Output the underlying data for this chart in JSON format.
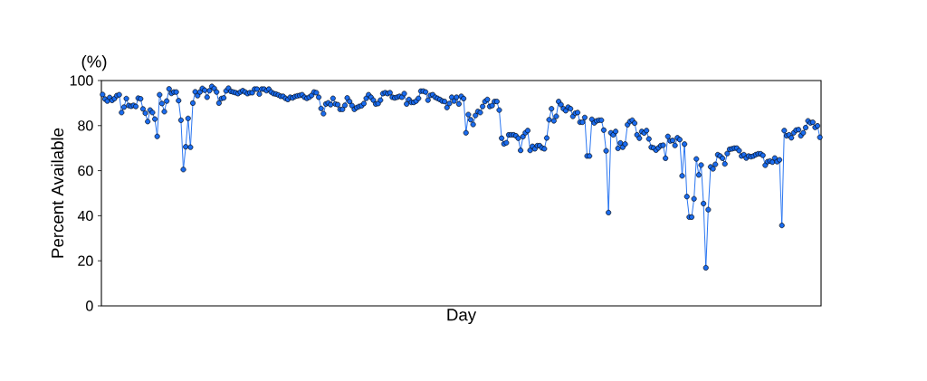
{
  "chart_data": {
    "type": "line",
    "xlabel": "Day",
    "ylabel": "Percent Available",
    "annotations": [
      "(%)"
    ],
    "categories": [
      null,
      null,
      null,
      null,
      null,
      null,
      null,
      null,
      null,
      null,
      null,
      null,
      null,
      null,
      null,
      null,
      null,
      null,
      null,
      null,
      null,
      null,
      null,
      null,
      null,
      null,
      null,
      null,
      null,
      null,
      null,
      null,
      null,
      null,
      null,
      null,
      null,
      null,
      null,
      null,
      null,
      null,
      null,
      null,
      null,
      null,
      null,
      null,
      null,
      null,
      null,
      null,
      null,
      null,
      null,
      null,
      null,
      null,
      null,
      null,
      null,
      null,
      null,
      null,
      null,
      null,
      null,
      null,
      null,
      null,
      null,
      null,
      null,
      null,
      null,
      null,
      null,
      null,
      null,
      null,
      null,
      null,
      null,
      null,
      null,
      null,
      null,
      null,
      null,
      null,
      null,
      null,
      null,
      null,
      null,
      null,
      null,
      null,
      null,
      null,
      null,
      null,
      null,
      null,
      null,
      null,
      null,
      null,
      null,
      null,
      null,
      null,
      null,
      null,
      null,
      null,
      null,
      null,
      null,
      null,
      null,
      null,
      null,
      null,
      null,
      null,
      null,
      null,
      null,
      null,
      null,
      null,
      null,
      null,
      null,
      null,
      null,
      null,
      null,
      null,
      null,
      null,
      null,
      null,
      null,
      null,
      null,
      null,
      null,
      null,
      null,
      null,
      null,
      null,
      null,
      null,
      null,
      null,
      null,
      null,
      null,
      null,
      null,
      null,
      null,
      null,
      null,
      null,
      null,
      null,
      null,
      null,
      null,
      null,
      null,
      null,
      null,
      null,
      null,
      null,
      null,
      null,
      null,
      null,
      null,
      null,
      null,
      null,
      null,
      null,
      null,
      null,
      null,
      null,
      null,
      null,
      null,
      null,
      null,
      null,
      null,
      null,
      null,
      null,
      null,
      null,
      null,
      null,
      null,
      null,
      null,
      null,
      null,
      null,
      null,
      null,
      null,
      null,
      null,
      null,
      null,
      null,
      null,
      null,
      null,
      null,
      null,
      null,
      null,
      null,
      null,
      null,
      null,
      null,
      null,
      null,
      null,
      null,
      null,
      null,
      null,
      null,
      null,
      null,
      null,
      null,
      null,
      null,
      null,
      null,
      null,
      null,
      null,
      null,
      null,
      null,
      null,
      null,
      null,
      null,
      null,
      null,
      null,
      null,
      null,
      null,
      null,
      null,
      null,
      null,
      null,
      null,
      null,
      null,
      null,
      null,
      null,
      null,
      null,
      null,
      null,
      null,
      null,
      null,
      null,
      null,
      null,
      null,
      null,
      null,
      null,
      null,
      null,
      null,
      null,
      null,
      null,
      null,
      null,
      null,
      null,
      null,
      null
    ],
    "series": [
      {
        "color": "#1a6cf0",
        "values": [
          93.8,
          91.8,
          90.9,
          92.5,
          91.2,
          92,
          93.3,
          93.7,
          85.8,
          88.2,
          92,
          88.9,
          88.6,
          89,
          88.5,
          92.2,
          91.9,
          87.4,
          85.5,
          81.8,
          86.9,
          85.8,
          82.9,
          75.2,
          93.7,
          89.8,
          86.2,
          90.9,
          96.3,
          94.3,
          94.9,
          94.9,
          91.1,
          82.4,
          60.5,
          70.6,
          83.2,
          70.4,
          90,
          95,
          93.3,
          94.9,
          96.5,
          95.7,
          92.6,
          95.5,
          97.4,
          96.5,
          94.9,
          90,
          92,
          92.3,
          95.4,
          96.6,
          95.2,
          94.9,
          94.6,
          94.2,
          94.9,
          95.5,
          94.9,
          94.2,
          94.6,
          94.6,
          96.2,
          96.2,
          94,
          96.2,
          96.2,
          95.5,
          96.2,
          94.9,
          94.2,
          94,
          93.6,
          93,
          93,
          92.1,
          91.6,
          92.6,
          92.3,
          92.9,
          93.2,
          93.4,
          93.7,
          92.6,
          92.1,
          92.6,
          93.4,
          94.9,
          94.6,
          92.6,
          87.6,
          85.3,
          89.6,
          90.1,
          89.3,
          92.1,
          89.6,
          89.3,
          87.2,
          87.2,
          89,
          92.3,
          90.7,
          88.9,
          87.2,
          88,
          88.5,
          88.8,
          89.8,
          92.1,
          93.7,
          92.6,
          91.3,
          89.6,
          89.8,
          91.3,
          94.2,
          94.6,
          94.2,
          94.6,
          92.6,
          92.3,
          92.6,
          93,
          92.6,
          94.2,
          89.6,
          91.6,
          90.3,
          90.3,
          90.9,
          92.1,
          95.3,
          95.3,
          94.9,
          91.3,
          93.4,
          93.7,
          92.6,
          92.1,
          91.6,
          90.9,
          90.7,
          88,
          89.8,
          92.6,
          90.9,
          92.6,
          89.6,
          93,
          92,
          76.8,
          84.9,
          82.6,
          80.5,
          84.5,
          86.3,
          85.8,
          88.5,
          90.7,
          91.6,
          88.5,
          88.9,
          90.7,
          90.7,
          86.9,
          74.4,
          71.9,
          72.4,
          75.9,
          75.9,
          75.9,
          75.5,
          74.4,
          69,
          75.1,
          76.8,
          77.8,
          69,
          70.8,
          69.7,
          71.1,
          71.1,
          70.1,
          69.7,
          74.5,
          82.6,
          87.5,
          82.1,
          84.1,
          90.7,
          89.3,
          87.5,
          86.6,
          88.2,
          87.5,
          84.1,
          85.5,
          85.8,
          81.5,
          81.5,
          83.6,
          66.5,
          66.5,
          82.8,
          81.2,
          82.1,
          82.4,
          82.4,
          78,
          68.8,
          41.4,
          76.8,
          75.9,
          77.4,
          69.9,
          72.3,
          70.4,
          71.8,
          80.4,
          81.8,
          82.4,
          81.1,
          75.9,
          74.4,
          77.4,
          76.7,
          77.8,
          74.1,
          70.4,
          70.1,
          69.1,
          70.1,
          71.1,
          71.3,
          65.5,
          75.2,
          73.2,
          73.4,
          71.2,
          74.6,
          73.8,
          57.7,
          71.8,
          48.5,
          39.4,
          39.4,
          47.5,
          65.2,
          58.1,
          62.5,
          45.4,
          16.9,
          42.7,
          61.7,
          60.8,
          62.8,
          67.1,
          66.5,
          65.5,
          63,
          67.6,
          69.5,
          69.7,
          70,
          70,
          68.9,
          66.5,
          67.1,
          65.6,
          66.5,
          66.2,
          66.5,
          67.1,
          67.5,
          67.5,
          66.8,
          62.4,
          64,
          64.3,
          63.8,
          65.6,
          64,
          64.8,
          35.7,
          77.8,
          75.5,
          75.9,
          74.6,
          76.8,
          78,
          78.2,
          75.5,
          76.8,
          79.1,
          82.1,
          81.2,
          81.5,
          79.2,
          79.9,
          74.8
        ]
      }
    ],
    "ylim": [
      0,
      100
    ],
    "yticks": [
      0,
      20,
      40,
      60,
      80,
      100
    ],
    "marker": "circle",
    "line_style": "solid",
    "tick_labels": "y",
    "grid": false
  }
}
